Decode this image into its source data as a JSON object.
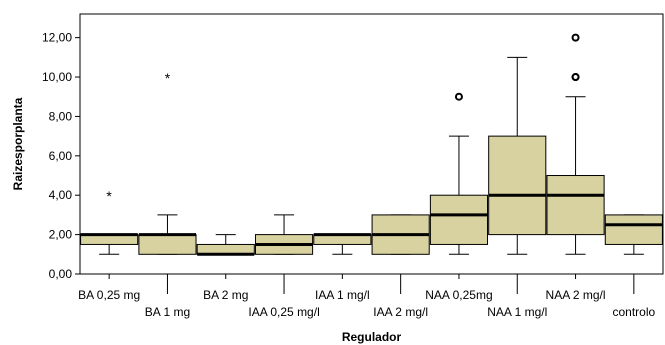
{
  "chart_data": {
    "type": "boxplot",
    "xlabel": "Regulador",
    "ylabel": "Raizesporplanta",
    "ylim": [
      0,
      13.2
    ],
    "yticks": [
      0,
      2,
      4,
      6,
      8,
      10,
      12
    ],
    "ytick_labels": [
      "0,00",
      "2,00",
      "4,00",
      "6,00",
      "8,00",
      "10,00",
      "12,00"
    ],
    "grid": false,
    "colors": {
      "box_fill": "#d7d29f",
      "box_stroke": "#000000",
      "median": "#000000",
      "plot_border": "#000000"
    },
    "categories": [
      "BA 0,25 mg",
      "BA 1 mg",
      "BA 2 mg",
      "IAA 0,25 mg/l",
      "IAA 1 mg/l",
      "IAA 2 mg/l",
      "NAA 0,25mg",
      "NAA 1 mg/l",
      "NAA 2 mg/l",
      "controlo"
    ],
    "boxes": [
      {
        "category": "BA 0,25 mg",
        "whisker_low": 1,
        "q1": 1.5,
        "median": 2,
        "q3": 2,
        "whisker_high": 2,
        "outliers": [],
        "extremes": [
          4
        ]
      },
      {
        "category": "BA 1 mg",
        "whisker_low": 1,
        "q1": 1,
        "median": 2,
        "q3": 2,
        "whisker_high": 3,
        "outliers": [],
        "extremes": [
          10
        ]
      },
      {
        "category": "BA 2 mg",
        "whisker_low": 1,
        "q1": 1,
        "median": 1,
        "q3": 1.5,
        "whisker_high": 2,
        "outliers": [],
        "extremes": []
      },
      {
        "category": "IAA 0,25 mg/l",
        "whisker_low": 1,
        "q1": 1,
        "median": 1.5,
        "q3": 2,
        "whisker_high": 3,
        "outliers": [],
        "extremes": []
      },
      {
        "category": "IAA 1 mg/l",
        "whisker_low": 1,
        "q1": 1.5,
        "median": 2,
        "q3": 2,
        "whisker_high": 2,
        "outliers": [],
        "extremes": []
      },
      {
        "category": "IAA 2 mg/l",
        "whisker_low": 1,
        "q1": 1,
        "median": 2,
        "q3": 3,
        "whisker_high": 3,
        "outliers": [],
        "extremes": []
      },
      {
        "category": "NAA 0,25mg",
        "whisker_low": 1,
        "q1": 1.5,
        "median": 3,
        "q3": 4,
        "whisker_high": 7,
        "outliers": [
          9
        ],
        "extremes": []
      },
      {
        "category": "NAA 1 mg/l",
        "whisker_low": 1,
        "q1": 2,
        "median": 4,
        "q3": 7,
        "whisker_high": 11,
        "outliers": [],
        "extremes": []
      },
      {
        "category": "NAA 2 mg/l",
        "whisker_low": 1,
        "q1": 2,
        "median": 4,
        "q3": 5,
        "whisker_high": 9,
        "outliers": [
          10,
          10,
          12
        ],
        "extremes": []
      },
      {
        "category": "controlo",
        "whisker_low": 1,
        "q1": 1.5,
        "median": 2.5,
        "q3": 3,
        "whisker_high": 3,
        "outliers": [],
        "extremes": []
      }
    ]
  }
}
